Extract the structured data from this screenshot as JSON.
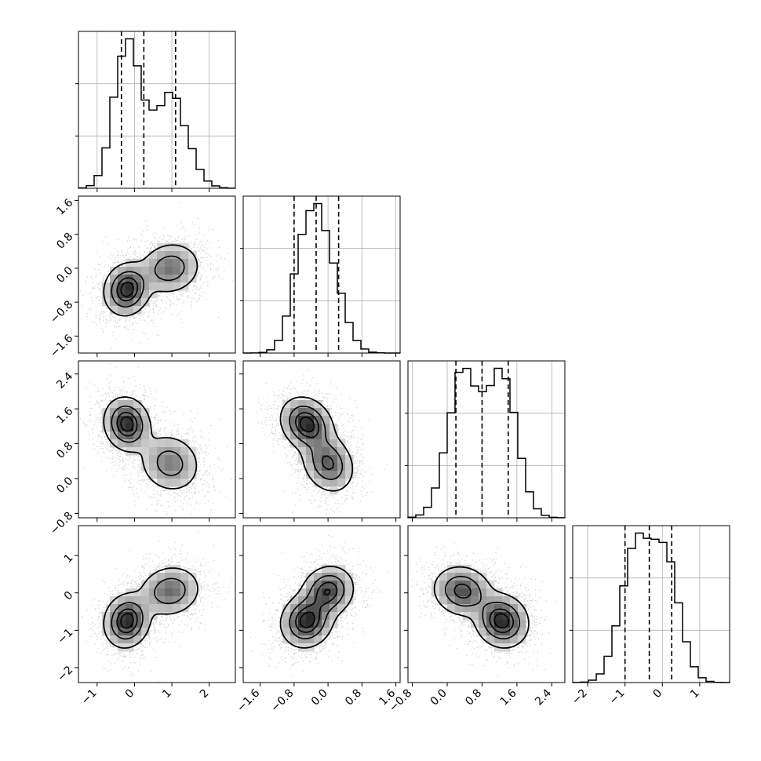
{
  "chart_data": {
    "type": "corner",
    "title": "",
    "parameters": 4,
    "grid": true,
    "colors": {
      "scatter": "#555555",
      "density": "#000000",
      "lines": "#000000",
      "grid": "#b0b0b0"
    },
    "axes": [
      {
        "index": 0,
        "range": [
          -1.5,
          2.7
        ],
        "ticks": [
          -1,
          0,
          1,
          2
        ],
        "tick_labels": [
          "−1",
          "0",
          "1",
          "2"
        ]
      },
      {
        "index": 1,
        "range": [
          -2.0,
          1.7
        ],
        "ticks": [
          -1.6,
          -0.8,
          0.0,
          0.8,
          1.6
        ],
        "tick_labels": [
          "−1.6",
          "−0.8",
          "0.0",
          "0.8",
          "1.6"
        ]
      },
      {
        "index": 2,
        "range": [
          -0.9,
          2.7
        ],
        "ticks": [
          -0.8,
          0.0,
          0.8,
          1.6,
          2.4
        ],
        "tick_labels": [
          "−0.8",
          "0.0",
          "0.8",
          "1.6",
          "2.4"
        ]
      },
      {
        "index": 3,
        "range": [
          -2.4,
          1.8
        ],
        "ticks": [
          -2,
          -1,
          0,
          1
        ],
        "tick_labels": [
          "−2",
          "−1",
          "0",
          "1"
        ]
      }
    ],
    "histograms": [
      {
        "param": 0,
        "quantiles": [
          -0.35,
          0.25,
          1.1
        ],
        "mixture": [
          {
            "weight": 0.55,
            "mean": -0.2,
            "sd": 0.35
          },
          {
            "weight": 0.45,
            "mean": 0.95,
            "sd": 0.45
          }
        ]
      },
      {
        "param": 1,
        "quantiles": [
          -0.8,
          -0.28,
          0.25
        ],
        "mixture": [
          {
            "weight": 0.55,
            "mean": -0.5,
            "sd": 0.32
          },
          {
            "weight": 0.45,
            "mean": 0.0,
            "sd": 0.35
          }
        ]
      },
      {
        "param": 2,
        "quantiles": [
          0.2,
          0.8,
          1.4
        ],
        "mixture": [
          {
            "weight": 0.5,
            "mean": 0.35,
            "sd": 0.35
          },
          {
            "weight": 0.5,
            "mean": 1.25,
            "sd": 0.35
          }
        ]
      },
      {
        "param": 3,
        "quantiles": [
          -1.0,
          -0.35,
          0.25
        ],
        "mixture": [
          {
            "weight": 0.5,
            "mean": -0.75,
            "sd": 0.4
          },
          {
            "weight": 0.5,
            "mean": 0.05,
            "sd": 0.4
          }
        ]
      }
    ],
    "components": [
      {
        "weight": 0.55,
        "mean": [
          -0.2,
          -0.5,
          1.25,
          -0.75
        ],
        "sd": [
          0.3,
          0.3,
          0.3,
          0.35
        ]
      },
      {
        "weight": 0.45,
        "mean": [
          0.95,
          0.0,
          0.35,
          0.05
        ],
        "sd": [
          0.4,
          0.3,
          0.33,
          0.33
        ]
      }
    ],
    "correlations": {
      "1-0": 0.1,
      "2-0": -0.1,
      "2-1": -0.2,
      "3-0": 0.1,
      "3-1": 0.1,
      "3-2": -0.1
    },
    "contour_levels": [
      0.118,
      0.393,
      0.675,
      0.864
    ]
  }
}
